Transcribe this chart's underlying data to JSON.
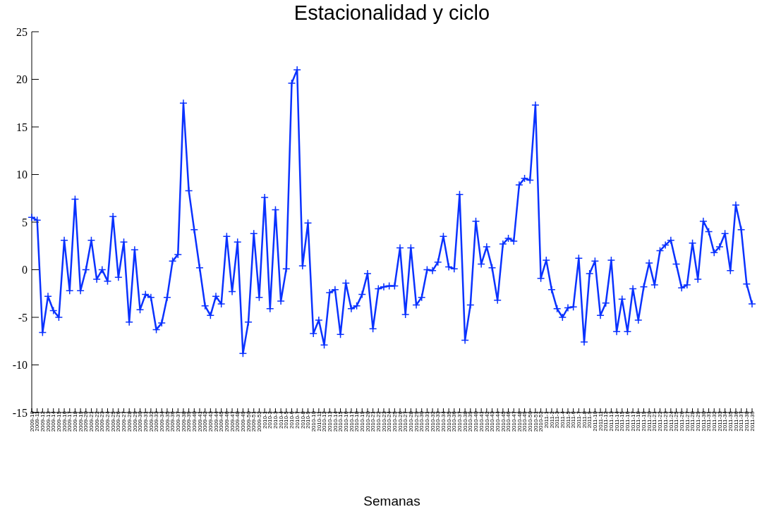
{
  "chart_data": {
    "type": "line",
    "title": "Estacionalidad y ciclo",
    "xlabel": "Semanas",
    "categories": [
      "2009-10",
      "2009-11",
      "2009-12",
      "2009-13",
      "2009-14",
      "2009-15",
      "2009-16",
      "2009-17",
      "2009-18",
      "2009-19",
      "2009-20",
      "2009-21",
      "2009-22",
      "2009-23",
      "2009-24",
      "2009-25",
      "2009-26",
      "2009-27",
      "2009-28",
      "2009-29",
      "2009-30",
      "2009-31",
      "2009-32",
      "2009-33",
      "2009-34",
      "2009-35",
      "2009-36",
      "2009-37",
      "2009-38",
      "2009-39",
      "2009-40",
      "2009-41",
      "2009-42",
      "2009-43",
      "2009-44",
      "2009-45",
      "2009-46",
      "2009-47",
      "2009-48",
      "2009-49",
      "2009-50",
      "2009-51",
      "2009-52",
      "2010-1",
      "2010-2",
      "2010-3",
      "2010-4",
      "2010-5",
      "2010-6",
      "2010-7",
      "2010-8",
      "2010-9",
      "2010-10",
      "2010-11",
      "2010-12",
      "2010-13",
      "2010-14",
      "2010-15",
      "2010-16",
      "2010-17",
      "2010-18",
      "2010-19",
      "2010-20",
      "2010-21",
      "2010-22",
      "2010-23",
      "2010-24",
      "2010-25",
      "2010-26",
      "2010-27",
      "2010-28",
      "2010-29",
      "2010-30",
      "2010-31",
      "2010-32",
      "2010-33",
      "2010-34",
      "2010-35",
      "2010-36",
      "2010-37",
      "2010-38",
      "2010-39",
      "2010-40",
      "2010-41",
      "2010-42",
      "2010-43",
      "2010-44",
      "2010-45",
      "2010-46",
      "2010-47",
      "2010-48",
      "2010-49",
      "2010-50",
      "2010-51",
      "2010-52",
      "2011-1",
      "2011-2",
      "2011-3",
      "2011-4",
      "2011-5",
      "2011-6",
      "2011-7",
      "2011-8",
      "2011-9",
      "2011-10",
      "2011-11",
      "2011-12",
      "2011-13",
      "2011-14",
      "2011-15",
      "2011-16",
      "2011-17",
      "2011-18",
      "2011-19",
      "2011-20",
      "2011-21",
      "2011-22",
      "2011-23",
      "2011-24",
      "2011-25",
      "2011-26",
      "2011-27",
      "2011-28",
      "2011-29",
      "2011-30",
      "2011-31",
      "2011-32",
      "2011-33",
      "2011-34",
      "2011-35",
      "2011-36",
      "2011-37",
      "2011-38",
      "2011-39"
    ],
    "series": [
      {
        "color": "#0a32ff",
        "values": [
          5.5,
          5.2,
          -6.6,
          -2.8,
          -4.3,
          -5.0,
          3.1,
          -2.2,
          7.4,
          -2.2,
          0.0,
          3.1,
          -1.0,
          0.0,
          -1.2,
          5.6,
          -0.8,
          2.9,
          -5.5,
          2.1,
          -4.2,
          -2.6,
          -2.9,
          -6.3,
          -5.6,
          -2.9,
          0.9,
          1.6,
          17.5,
          8.3,
          4.2,
          0.2,
          -3.8,
          -4.8,
          -2.8,
          -3.6,
          3.5,
          -2.3,
          2.9,
          -8.8,
          -5.5,
          3.8,
          -2.9,
          7.6,
          -4.1,
          6.3,
          -3.3,
          0.1,
          19.6,
          21.0,
          0.4,
          4.9,
          -6.7,
          -5.3,
          -7.9,
          -2.4,
          -2.1,
          -6.8,
          -1.4,
          -4.1,
          -3.8,
          -2.6,
          -0.4,
          -6.2,
          -2.0,
          -1.8,
          -1.7,
          -1.7,
          2.3,
          -4.7,
          2.3,
          -3.7,
          -2.9,
          0.0,
          -0.1,
          0.8,
          3.5,
          0.3,
          0.1,
          7.9,
          -7.4,
          -3.7,
          5.1,
          0.6,
          2.4,
          0.2,
          -3.2,
          2.7,
          3.3,
          3.0,
          8.9,
          9.6,
          9.4,
          17.3,
          -0.9,
          1.0,
          -2.1,
          -4.1,
          -5.0,
          -4.0,
          -3.9,
          1.2,
          -7.6,
          -0.4,
          0.9,
          -4.8,
          -3.5,
          1.0,
          -6.5,
          -3.1,
          -6.5,
          -2.0,
          -5.3,
          -1.8,
          0.7,
          -1.6,
          2.0,
          2.6,
          3.1,
          0.6,
          -1.9,
          -1.6,
          2.8,
          -1.0,
          5.1,
          4.0,
          1.8,
          2.4,
          3.8,
          -0.1,
          6.8,
          4.2,
          -1.5,
          -3.6
        ]
      }
    ],
    "ylim": [
      -15,
      25
    ],
    "yticks": [
      -15,
      -10,
      -5,
      0,
      5,
      10,
      15,
      20,
      25
    ],
    "marker": "cross",
    "line_style": "solid"
  }
}
